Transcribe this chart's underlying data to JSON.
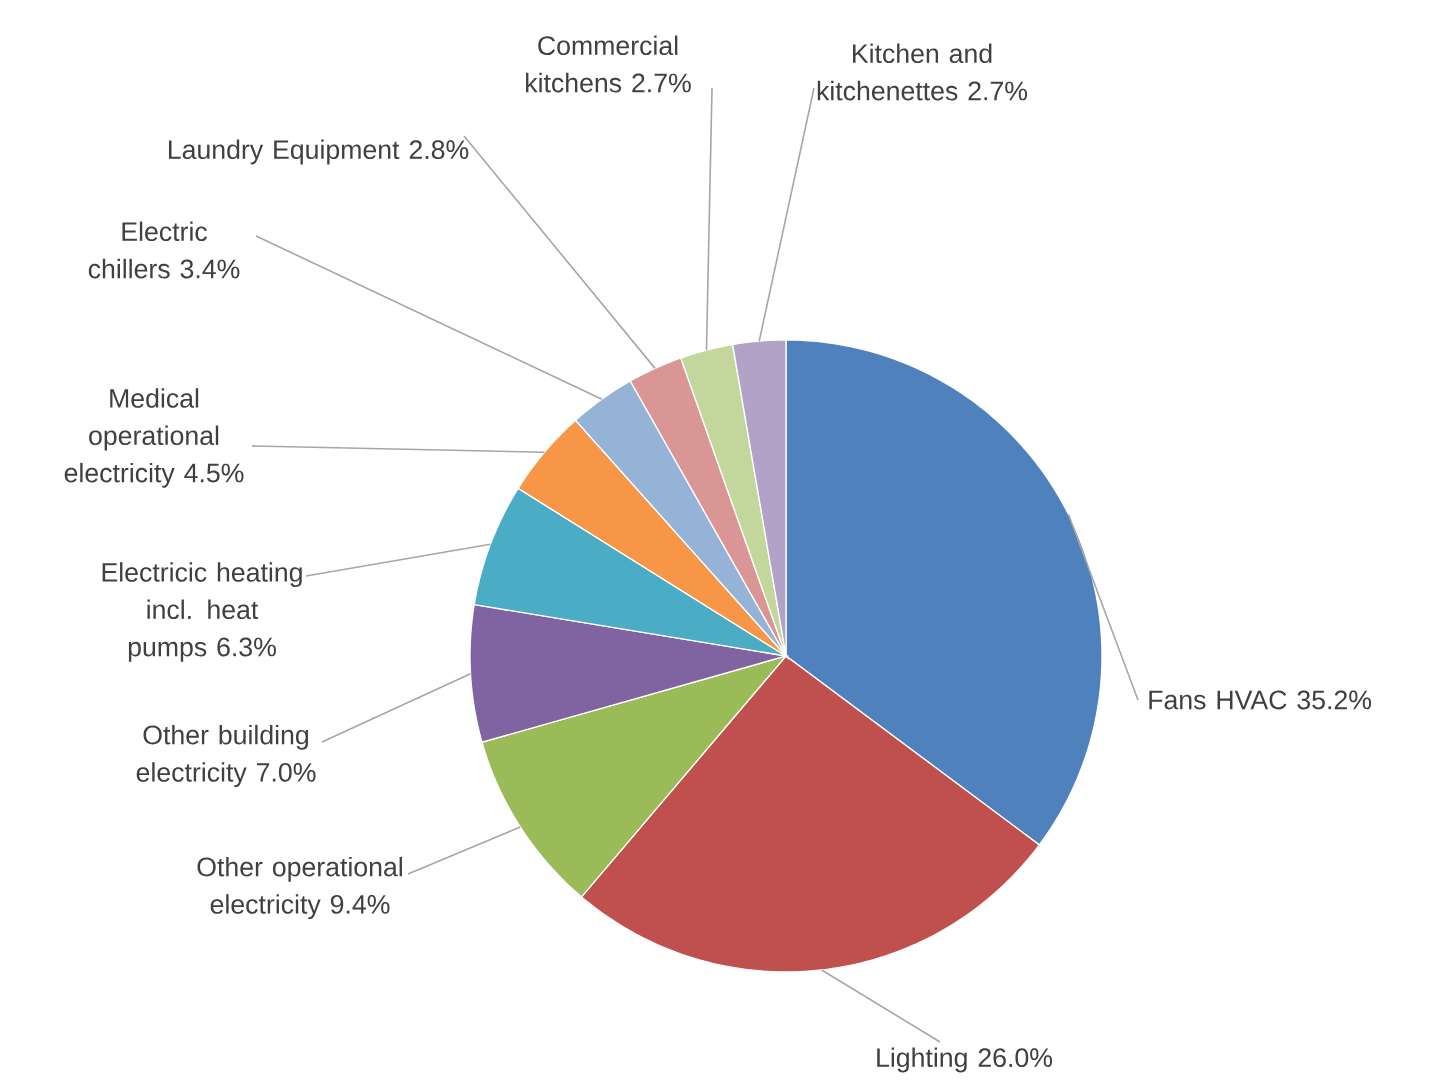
{
  "chart_data": {
    "type": "pie",
    "categories": [
      "Fans HVAC",
      "Lighting",
      "Other operational electricity",
      "Other building electricity",
      "Electricic heating incl. heat pumps",
      "Medical operational electricity",
      "Electric chillers",
      "Laundry Equipment",
      "Commercial kitchens",
      "Kitchen and kitchenettes"
    ],
    "values": [
      35.2,
      26.0,
      9.4,
      7.0,
      6.3,
      4.5,
      3.4,
      2.8,
      2.7,
      2.7
    ],
    "colors": [
      "#4f81bd",
      "#c0504d",
      "#9bbb59",
      "#8064a2",
      "#4bacc6",
      "#f79646",
      "#95b3d7",
      "#d99694",
      "#c3d69b",
      "#b3a2c7"
    ],
    "value_labels": [
      "35.2%",
      "26.0%",
      "9.4%",
      "7.0%",
      "6.3%",
      "4.5%",
      "3.4%",
      "2.8%",
      "2.7%",
      "2.7%"
    ]
  }
}
